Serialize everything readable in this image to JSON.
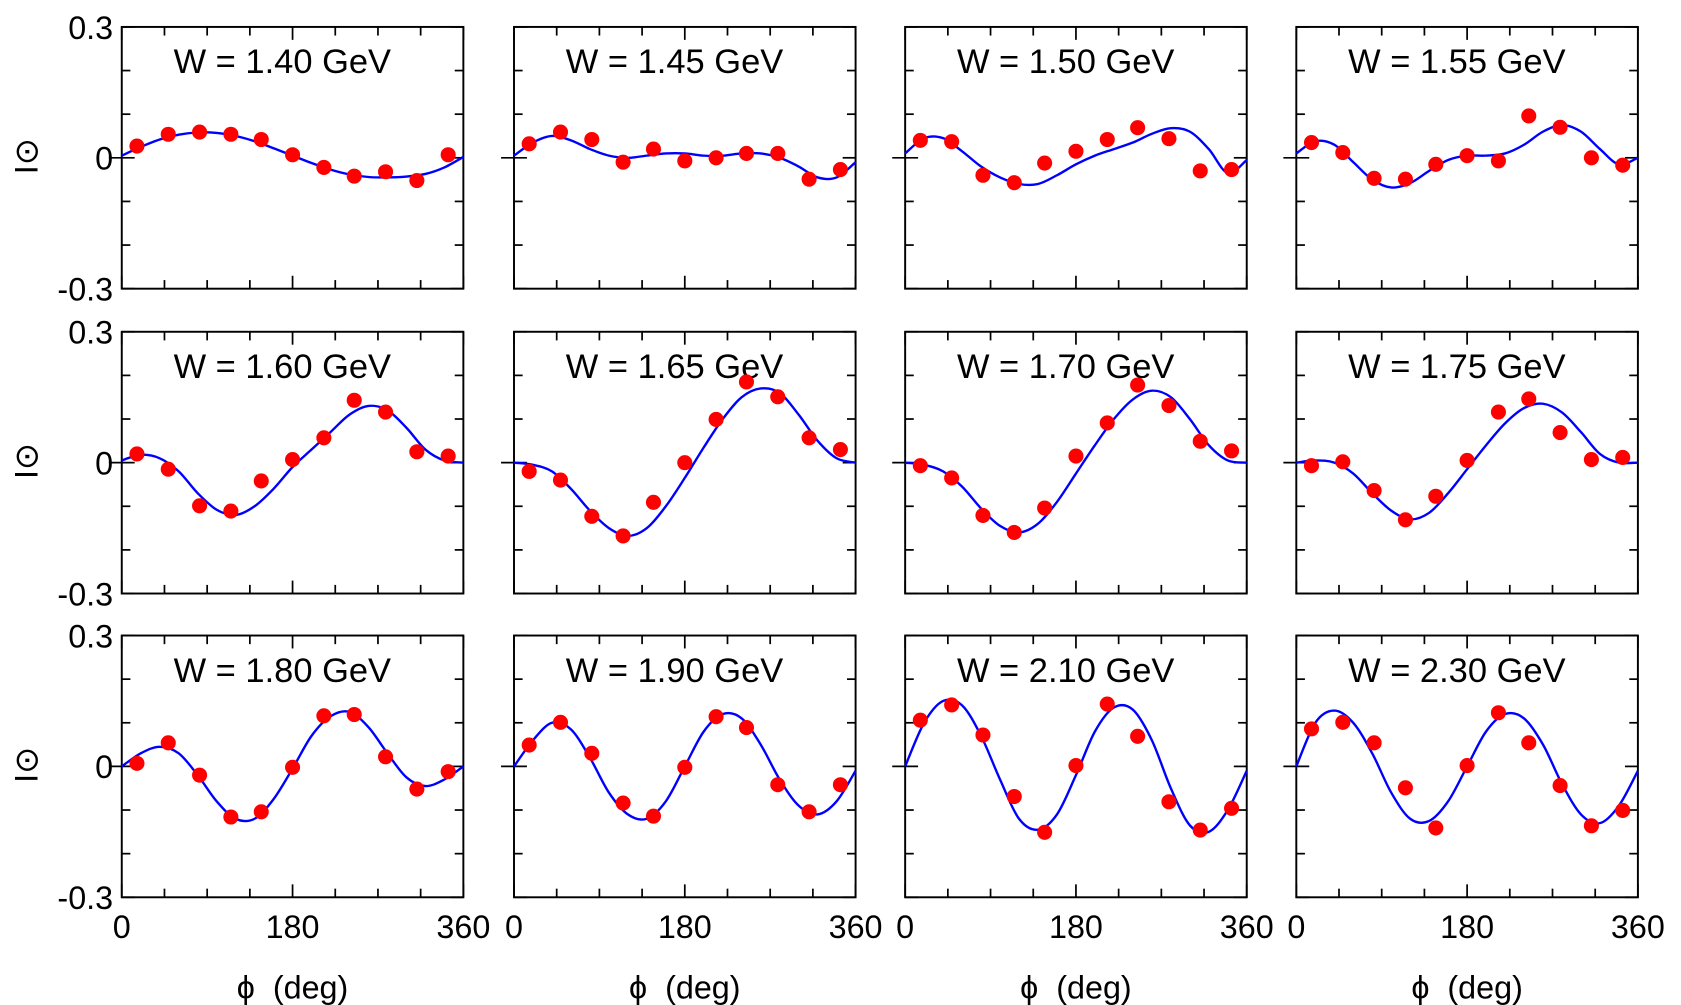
{
  "chart_data": [
    {
      "type": "scatter",
      "title": "W = 1.40 GeV",
      "ylabel": "I⊙",
      "xlim": [
        0,
        360
      ],
      "ylim": [
        -0.3,
        0.3
      ],
      "yticks": [
        -0.3,
        0,
        0.3
      ],
      "xticks": [
        0,
        180,
        360
      ],
      "xticks_minor": [
        45,
        90,
        135,
        225,
        270,
        315
      ],
      "yticks_minor": [
        -0.2,
        -0.1,
        0.1,
        0.2
      ],
      "points": {
        "color": "#ff0000",
        "x": [
          16,
          49,
          82,
          115,
          147,
          180,
          213,
          245,
          278,
          311,
          344
        ],
        "values": [
          0.027,
          0.054,
          0.059,
          0.054,
          0.042,
          0.007,
          -0.022,
          -0.042,
          -0.032,
          -0.052,
          0.007
        ]
      },
      "fit": {
        "color": "#0000ff",
        "x": [
          0,
          20,
          40,
          60,
          80,
          100,
          120,
          140,
          160,
          180,
          200,
          220,
          240,
          260,
          280,
          300,
          320,
          340,
          360
        ],
        "values": [
          0.005,
          0.025,
          0.042,
          0.053,
          0.058,
          0.057,
          0.05,
          0.038,
          0.022,
          0.005,
          -0.012,
          -0.027,
          -0.038,
          -0.044,
          -0.045,
          -0.043,
          -0.037,
          -0.022,
          0.002
        ]
      }
    },
    {
      "type": "scatter",
      "title": "W = 1.45 GeV",
      "xlim": [
        0,
        360
      ],
      "ylim": [
        -0.3,
        0.3
      ],
      "yticks": [
        -0.3,
        0,
        0.3
      ],
      "xticks": [
        0,
        180,
        360
      ],
      "xticks_minor": [
        45,
        90,
        135,
        225,
        270,
        315
      ],
      "yticks_minor": [
        -0.2,
        -0.1,
        0.1,
        0.2
      ],
      "points": {
        "color": "#ff0000",
        "x": [
          16,
          49,
          82,
          115,
          147,
          180,
          213,
          245,
          278,
          311,
          344
        ],
        "values": [
          0.032,
          0.059,
          0.042,
          -0.01,
          0.02,
          -0.007,
          0,
          0.01,
          0.01,
          -0.049,
          -0.027
        ]
      },
      "fit": {
        "color": "#0000ff",
        "x": [
          0,
          20,
          40,
          60,
          80,
          100,
          120,
          140,
          160,
          180,
          200,
          220,
          240,
          260,
          280,
          300,
          320,
          340,
          360
        ],
        "values": [
          0.005,
          0.035,
          0.05,
          0.04,
          0.02,
          0.005,
          0,
          0.005,
          0.01,
          0.01,
          0.005,
          0.005,
          0.01,
          0.01,
          0,
          -0.02,
          -0.045,
          -0.045,
          -0.01
        ]
      }
    },
    {
      "type": "scatter",
      "title": "W = 1.50 GeV",
      "xlim": [
        0,
        360
      ],
      "ylim": [
        -0.3,
        0.3
      ],
      "yticks": [
        -0.3,
        0,
        0.3
      ],
      "xticks": [
        0,
        180,
        360
      ],
      "xticks_minor": [
        45,
        90,
        135,
        225,
        270,
        315
      ],
      "yticks_minor": [
        -0.2,
        -0.1,
        0.1,
        0.2
      ],
      "points": {
        "color": "#ff0000",
        "x": [
          16,
          49,
          82,
          115,
          147,
          180,
          213,
          245,
          278,
          311,
          344
        ],
        "values": [
          0.04,
          0.037,
          -0.04,
          -0.057,
          -0.012,
          0.015,
          0.042,
          0.069,
          0.044,
          -0.03,
          -0.027
        ]
      },
      "fit": {
        "color": "#0000ff",
        "x": [
          0,
          20,
          40,
          60,
          80,
          100,
          120,
          140,
          160,
          180,
          200,
          220,
          240,
          260,
          280,
          300,
          320,
          340,
          360
        ],
        "values": [
          0.01,
          0.045,
          0.045,
          0.015,
          -0.02,
          -0.045,
          -0.06,
          -0.06,
          -0.04,
          -0.015,
          0.005,
          0.02,
          0.035,
          0.055,
          0.068,
          0.06,
          0.02,
          -0.035,
          -0.005
        ]
      }
    },
    {
      "type": "scatter",
      "title": "W = 1.55 GeV",
      "xlim": [
        0,
        360
      ],
      "ylim": [
        -0.3,
        0.3
      ],
      "yticks": [
        -0.3,
        0,
        0.3
      ],
      "xticks": [
        0,
        180,
        360
      ],
      "xticks_minor": [
        45,
        90,
        135,
        225,
        270,
        315
      ],
      "yticks_minor": [
        -0.2,
        -0.1,
        0.1,
        0.2
      ],
      "points": {
        "color": "#ff0000",
        "x": [
          16,
          49,
          82,
          115,
          147,
          180,
          213,
          245,
          278,
          311,
          344
        ],
        "values": [
          0.035,
          0.012,
          -0.047,
          -0.049,
          -0.015,
          0.005,
          -0.007,
          0.096,
          0.07,
          0,
          -0.017
        ]
      },
      "fit": {
        "color": "#0000ff",
        "x": [
          0,
          20,
          40,
          60,
          80,
          100,
          120,
          140,
          160,
          180,
          200,
          220,
          240,
          260,
          280,
          300,
          320,
          340,
          360
        ],
        "values": [
          0.01,
          0.038,
          0.03,
          -0.01,
          -0.05,
          -0.068,
          -0.058,
          -0.03,
          -0.005,
          0.005,
          0.005,
          0.01,
          0.03,
          0.06,
          0.075,
          0.06,
          0.02,
          -0.015,
          0
        ]
      }
    },
    {
      "type": "scatter",
      "title": "W = 1.60 GeV",
      "ylabel": "I⊙",
      "xlim": [
        0,
        360
      ],
      "ylim": [
        -0.3,
        0.3
      ],
      "yticks": [
        -0.3,
        0,
        0.3
      ],
      "xticks": [
        0,
        180,
        360
      ],
      "xticks_minor": [
        45,
        90,
        135,
        225,
        270,
        315
      ],
      "yticks_minor": [
        -0.2,
        -0.1,
        0.1,
        0.2
      ],
      "points": {
        "color": "#ff0000",
        "x": [
          16,
          49,
          82,
          115,
          147,
          180,
          213,
          245,
          278,
          311,
          344
        ],
        "values": [
          0.02,
          -0.015,
          -0.099,
          -0.111,
          -0.042,
          0.007,
          0.057,
          0.143,
          0.116,
          0.025,
          0.015
        ]
      },
      "fit": {
        "color": "#0000ff",
        "x": [
          0,
          20,
          40,
          60,
          80,
          100,
          120,
          140,
          160,
          180,
          200,
          220,
          240,
          260,
          280,
          300,
          320,
          340,
          360
        ],
        "values": [
          0.005,
          0.018,
          0.01,
          -0.02,
          -0.07,
          -0.108,
          -0.12,
          -0.1,
          -0.06,
          -0.01,
          0.03,
          0.07,
          0.11,
          0.13,
          0.12,
          0.08,
          0.03,
          0.005,
          0
        ]
      }
    },
    {
      "type": "scatter",
      "title": "W = 1.65 GeV",
      "xlim": [
        0,
        360
      ],
      "ylim": [
        -0.3,
        0.3
      ],
      "yticks": [
        -0.3,
        0,
        0.3
      ],
      "xticks": [
        0,
        180,
        360
      ],
      "xticks_minor": [
        45,
        90,
        135,
        225,
        270,
        315
      ],
      "yticks_minor": [
        -0.2,
        -0.1,
        0.1,
        0.2
      ],
      "points": {
        "color": "#ff0000",
        "x": [
          16,
          49,
          82,
          115,
          147,
          180,
          213,
          245,
          278,
          311,
          344
        ],
        "values": [
          -0.02,
          -0.04,
          -0.123,
          -0.168,
          -0.091,
          0,
          0.099,
          0.185,
          0.151,
          0.057,
          0.03
        ]
      },
      "fit": {
        "color": "#0000ff",
        "x": [
          0,
          20,
          40,
          60,
          80,
          100,
          120,
          140,
          160,
          180,
          200,
          220,
          240,
          260,
          280,
          300,
          320,
          340,
          360
        ],
        "values": [
          0,
          -0.005,
          -0.02,
          -0.06,
          -0.11,
          -0.15,
          -0.168,
          -0.15,
          -0.1,
          -0.035,
          0.035,
          0.1,
          0.15,
          0.17,
          0.16,
          0.11,
          0.05,
          0.01,
          0
        ]
      }
    },
    {
      "type": "scatter",
      "title": "W = 1.70 GeV",
      "xlim": [
        0,
        360
      ],
      "ylim": [
        -0.3,
        0.3
      ],
      "yticks": [
        -0.3,
        0,
        0.3
      ],
      "xticks": [
        0,
        180,
        360
      ],
      "xticks_minor": [
        45,
        90,
        135,
        225,
        270,
        315
      ],
      "yticks_minor": [
        -0.2,
        -0.1,
        0.1,
        0.2
      ],
      "points": {
        "color": "#ff0000",
        "x": [
          16,
          49,
          82,
          115,
          147,
          180,
          213,
          245,
          278,
          311,
          344
        ],
        "values": [
          -0.007,
          -0.035,
          -0.121,
          -0.16,
          -0.104,
          0.015,
          0.091,
          0.178,
          0.131,
          0.049,
          0.027
        ]
      },
      "fit": {
        "color": "#0000ff",
        "x": [
          0,
          20,
          40,
          60,
          80,
          100,
          120,
          140,
          160,
          180,
          200,
          220,
          240,
          260,
          280,
          300,
          320,
          340,
          360
        ],
        "values": [
          0,
          -0.005,
          -0.02,
          -0.055,
          -0.105,
          -0.145,
          -0.16,
          -0.14,
          -0.09,
          -0.025,
          0.04,
          0.1,
          0.145,
          0.165,
          0.15,
          0.1,
          0.04,
          0.005,
          0
        ]
      }
    },
    {
      "type": "scatter",
      "title": "W = 1.75 GeV",
      "xlim": [
        0,
        360
      ],
      "ylim": [
        -0.3,
        0.3
      ],
      "yticks": [
        -0.3,
        0,
        0.3
      ],
      "xticks": [
        0,
        180,
        360
      ],
      "xticks_minor": [
        45,
        90,
        135,
        225,
        270,
        315
      ],
      "yticks_minor": [
        -0.2,
        -0.1,
        0.1,
        0.2
      ],
      "points": {
        "color": "#ff0000",
        "x": [
          16,
          49,
          82,
          115,
          147,
          180,
          213,
          245,
          278,
          311,
          344
        ],
        "values": [
          -0.007,
          0.002,
          -0.064,
          -0.131,
          -0.077,
          0.005,
          0.116,
          0.146,
          0.069,
          0.007,
          0.012
        ]
      },
      "fit": {
        "color": "#0000ff",
        "x": [
          0,
          20,
          40,
          60,
          80,
          100,
          120,
          140,
          160,
          180,
          200,
          220,
          240,
          260,
          280,
          300,
          320,
          340,
          360
        ],
        "values": [
          0,
          0.005,
          0,
          -0.025,
          -0.07,
          -0.11,
          -0.13,
          -0.115,
          -0.07,
          -0.015,
          0.04,
          0.09,
          0.125,
          0.135,
          0.115,
          0.07,
          0.02,
          0,
          0
        ]
      }
    },
    {
      "type": "scatter",
      "title": "W = 1.80 GeV",
      "ylabel": "I⊙",
      "xlabel": "ϕ  (deg)",
      "xlim": [
        0,
        360
      ],
      "ylim": [
        -0.3,
        0.3
      ],
      "yticks": [
        -0.3,
        0,
        0.3
      ],
      "xticks": [
        0,
        180,
        360
      ],
      "xticks_minor": [
        45,
        90,
        135,
        225,
        270,
        315
      ],
      "yticks_minor": [
        -0.2,
        -0.1,
        0.1,
        0.2
      ],
      "points": {
        "color": "#ff0000",
        "x": [
          16,
          49,
          82,
          115,
          147,
          180,
          213,
          245,
          278,
          311,
          344
        ],
        "values": [
          0.007,
          0.054,
          -0.02,
          -0.116,
          -0.104,
          -0.002,
          0.116,
          0.119,
          0.022,
          -0.052,
          -0.012
        ]
      },
      "fit": {
        "color": "#0000ff",
        "x": [
          0,
          20,
          40,
          60,
          80,
          100,
          120,
          140,
          160,
          180,
          200,
          220,
          240,
          260,
          280,
          300,
          320,
          340,
          360
        ],
        "values": [
          0,
          0.03,
          0.045,
          0.03,
          -0.02,
          -0.08,
          -0.12,
          -0.12,
          -0.075,
          -0.005,
          0.07,
          0.115,
          0.125,
          0.09,
          0.03,
          -0.025,
          -0.045,
          -0.03,
          0
        ]
      }
    },
    {
      "type": "scatter",
      "title": "W = 1.90 GeV",
      "xlabel": "ϕ  (deg)",
      "xlim": [
        0,
        360
      ],
      "ylim": [
        -0.3,
        0.3
      ],
      "yticks": [
        -0.3,
        0,
        0.3
      ],
      "xticks": [
        0,
        180,
        360
      ],
      "xticks_minor": [
        45,
        90,
        135,
        225,
        270,
        315
      ],
      "yticks_minor": [
        -0.2,
        -0.1,
        0.1,
        0.2
      ],
      "points": {
        "color": "#ff0000",
        "x": [
          16,
          49,
          82,
          115,
          147,
          180,
          213,
          245,
          278,
          311,
          344
        ],
        "values": [
          0.049,
          0.101,
          0.03,
          -0.084,
          -0.114,
          -0.002,
          0.114,
          0.089,
          -0.042,
          -0.104,
          -0.042
        ]
      },
      "fit": {
        "color": "#0000ff",
        "x": [
          0,
          20,
          40,
          60,
          80,
          100,
          120,
          140,
          160,
          180,
          200,
          220,
          240,
          260,
          280,
          300,
          320,
          340,
          360
        ],
        "values": [
          0,
          0.06,
          0.1,
          0.085,
          0.02,
          -0.06,
          -0.11,
          -0.12,
          -0.08,
          0,
          0.08,
          0.12,
          0.11,
          0.05,
          -0.03,
          -0.09,
          -0.11,
          -0.08,
          -0.01
        ]
      }
    },
    {
      "type": "scatter",
      "title": "W = 2.10 GeV",
      "xlabel": "ϕ  (deg)",
      "xlim": [
        0,
        360
      ],
      "ylim": [
        -0.3,
        0.3
      ],
      "yticks": [
        -0.3,
        0,
        0.3
      ],
      "xticks": [
        0,
        180,
        360
      ],
      "xticks_minor": [
        45,
        90,
        135,
        225,
        270,
        315
      ],
      "yticks_minor": [
        -0.2,
        -0.1,
        0.1,
        0.2
      ],
      "points": {
        "color": "#ff0000",
        "x": [
          16,
          49,
          82,
          115,
          147,
          180,
          213,
          245,
          278,
          311,
          344
        ],
        "values": [
          0.106,
          0.141,
          0.072,
          -0.069,
          -0.151,
          0.002,
          0.143,
          0.069,
          -0.081,
          -0.146,
          -0.096
        ]
      },
      "fit": {
        "color": "#0000ff",
        "x": [
          0,
          20,
          40,
          60,
          80,
          100,
          120,
          140,
          160,
          180,
          200,
          220,
          240,
          260,
          280,
          300,
          320,
          340,
          360
        ],
        "values": [
          0,
          0.1,
          0.15,
          0.14,
          0.07,
          -0.03,
          -0.12,
          -0.145,
          -0.11,
          -0.02,
          0.08,
          0.135,
          0.13,
          0.06,
          -0.05,
          -0.135,
          -0.15,
          -0.1,
          -0.01
        ]
      }
    },
    {
      "type": "scatter",
      "title": "W = 2.30 GeV",
      "xlabel": "ϕ  (deg)",
      "xlim": [
        0,
        360
      ],
      "ylim": [
        -0.3,
        0.3
      ],
      "yticks": [
        -0.3,
        0,
        0.3
      ],
      "xticks": [
        0,
        180,
        360
      ],
      "xticks_minor": [
        45,
        90,
        135,
        225,
        270,
        315
      ],
      "yticks_minor": [
        -0.2,
        -0.1,
        0.1,
        0.2
      ],
      "points": {
        "color": "#ff0000",
        "x": [
          16,
          49,
          82,
          115,
          147,
          180,
          213,
          245,
          278,
          311,
          344
        ],
        "values": [
          0.086,
          0.101,
          0.054,
          -0.049,
          -0.141,
          0.002,
          0.123,
          0.054,
          -0.044,
          -0.136,
          -0.101
        ]
      },
      "fit": {
        "color": "#0000ff",
        "x": [
          0,
          20,
          40,
          60,
          80,
          100,
          120,
          140,
          160,
          180,
          200,
          220,
          240,
          260,
          280,
          300,
          320,
          340,
          360
        ],
        "values": [
          0,
          0.1,
          0.128,
          0.1,
          0.03,
          -0.06,
          -0.12,
          -0.125,
          -0.08,
          0,
          0.08,
          0.12,
          0.11,
          0.05,
          -0.04,
          -0.11,
          -0.13,
          -0.09,
          -0.01
        ]
      }
    }
  ]
}
